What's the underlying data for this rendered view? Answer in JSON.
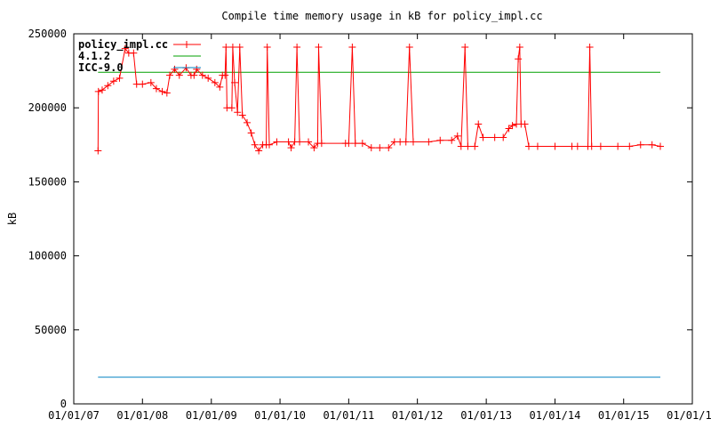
{
  "chart_data": {
    "type": "line",
    "title": "Compile time memory usage in kB for policy_impl.cc",
    "xlabel": "",
    "ylabel": "kB",
    "ylim": [
      0,
      250000
    ],
    "yticks": [
      0,
      50000,
      100000,
      150000,
      200000,
      250000
    ],
    "xlim": [
      "2007-01-01",
      "2016-01-01"
    ],
    "xticks": [
      {
        "date": "2007-01-01",
        "label": "01/01/07"
      },
      {
        "date": "2008-01-01",
        "label": "01/01/08"
      },
      {
        "date": "2009-01-01",
        "label": "01/01/09"
      },
      {
        "date": "2010-01-01",
        "label": "01/01/10"
      },
      {
        "date": "2011-01-01",
        "label": "01/01/11"
      },
      {
        "date": "2012-01-01",
        "label": "01/01/12"
      },
      {
        "date": "2013-01-01",
        "label": "01/01/13"
      },
      {
        "date": "2014-01-01",
        "label": "01/01/14"
      },
      {
        "date": "2015-01-01",
        "label": "01/01/15"
      },
      {
        "date": "2016-01-01",
        "label": "01/01/16"
      }
    ],
    "grid": false,
    "legend_position": "top-left",
    "series": [
      {
        "name": "policy_impl.cc",
        "color": "#ff0000",
        "marker": "plus",
        "points": [
          [
            "2007-05-10",
            171000
          ],
          [
            "2007-05-12",
            211000
          ],
          [
            "2007-06-01",
            212000
          ],
          [
            "2007-07-01",
            215000
          ],
          [
            "2007-08-01",
            218000
          ],
          [
            "2007-09-01",
            220000
          ],
          [
            "2007-10-01",
            240000
          ],
          [
            "2007-10-20",
            237000
          ],
          [
            "2007-11-15",
            237000
          ],
          [
            "2007-12-01",
            216000
          ],
          [
            "2008-01-01",
            216000
          ],
          [
            "2008-02-15",
            217000
          ],
          [
            "2008-03-15",
            213000
          ],
          [
            "2008-04-15",
            211000
          ],
          [
            "2008-05-10",
            210000
          ],
          [
            "2008-05-25",
            222000
          ],
          [
            "2008-06-20",
            226000
          ],
          [
            "2008-07-15",
            222000
          ],
          [
            "2008-08-20",
            227000
          ],
          [
            "2008-09-15",
            222000
          ],
          [
            "2008-10-01",
            222000
          ],
          [
            "2008-10-15",
            226000
          ],
          [
            "2008-11-15",
            222000
          ],
          [
            "2008-12-15",
            220000
          ],
          [
            "2009-01-20",
            217000
          ],
          [
            "2009-02-15",
            214000
          ],
          [
            "2009-03-01",
            222000
          ],
          [
            "2009-03-15",
            222000
          ],
          [
            "2009-03-20",
            241000
          ],
          [
            "2009-03-25",
            200000
          ],
          [
            "2009-04-20",
            200000
          ],
          [
            "2009-04-25",
            241000
          ],
          [
            "2009-05-05",
            217000
          ],
          [
            "2009-05-20",
            197000
          ],
          [
            "2009-06-01",
            241000
          ],
          [
            "2009-06-15",
            195000
          ],
          [
            "2009-07-10",
            190000
          ],
          [
            "2009-08-01",
            183000
          ],
          [
            "2009-08-20",
            175000
          ],
          [
            "2009-09-10",
            171000
          ],
          [
            "2009-10-01",
            175000
          ],
          [
            "2009-10-20",
            175000
          ],
          [
            "2009-10-25",
            241000
          ],
          [
            "2009-11-05",
            175000
          ],
          [
            "2009-12-15",
            177000
          ],
          [
            "2010-02-15",
            177000
          ],
          [
            "2010-03-01",
            173000
          ],
          [
            "2010-03-20",
            177000
          ],
          [
            "2010-04-01",
            241000
          ],
          [
            "2010-04-15",
            177000
          ],
          [
            "2010-06-01",
            177000
          ],
          [
            "2010-07-01",
            173000
          ],
          [
            "2010-07-20",
            176000
          ],
          [
            "2010-07-25",
            241000
          ],
          [
            "2010-08-10",
            176000
          ],
          [
            "2010-12-15",
            176000
          ],
          [
            "2011-01-01",
            176000
          ],
          [
            "2011-01-20",
            241000
          ],
          [
            "2011-02-05",
            176000
          ],
          [
            "2011-03-15",
            176000
          ],
          [
            "2011-05-01",
            173000
          ],
          [
            "2011-06-15",
            173000
          ],
          [
            "2011-08-01",
            173000
          ],
          [
            "2011-09-01",
            177000
          ],
          [
            "2011-10-01",
            177000
          ],
          [
            "2011-11-01",
            177000
          ],
          [
            "2011-11-20",
            241000
          ],
          [
            "2011-12-10",
            177000
          ],
          [
            "2012-03-01",
            177000
          ],
          [
            "2012-05-01",
            178000
          ],
          [
            "2012-07-01",
            178000
          ],
          [
            "2012-08-01",
            181000
          ],
          [
            "2012-08-20",
            174000
          ],
          [
            "2012-09-10",
            241000
          ],
          [
            "2012-09-25",
            174000
          ],
          [
            "2012-11-01",
            174000
          ],
          [
            "2012-11-20",
            189000
          ],
          [
            "2012-12-15",
            180000
          ],
          [
            "2013-02-15",
            180000
          ],
          [
            "2013-04-01",
            180000
          ],
          [
            "2013-05-01",
            186000
          ],
          [
            "2013-05-20",
            188000
          ],
          [
            "2013-06-10",
            189000
          ],
          [
            "2013-06-20",
            233000
          ],
          [
            "2013-06-28",
            241000
          ],
          [
            "2013-07-05",
            189000
          ],
          [
            "2013-07-25",
            189000
          ],
          [
            "2013-08-15",
            174000
          ],
          [
            "2013-10-01",
            174000
          ],
          [
            "2014-01-01",
            174000
          ],
          [
            "2014-04-01",
            174000
          ],
          [
            "2014-05-01",
            174000
          ],
          [
            "2014-06-25",
            174000
          ],
          [
            "2014-07-05",
            241000
          ],
          [
            "2014-07-15",
            174000
          ],
          [
            "2014-09-01",
            174000
          ],
          [
            "2014-12-01",
            174000
          ],
          [
            "2015-02-01",
            174000
          ],
          [
            "2015-04-01",
            175000
          ],
          [
            "2015-06-01",
            175000
          ],
          [
            "2015-07-15",
            174000
          ]
        ]
      },
      {
        "name": "4.1.2",
        "color": "#00a000",
        "marker": "none",
        "points": [
          [
            "2007-05-10",
            224000
          ],
          [
            "2015-07-15",
            224000
          ]
        ]
      },
      {
        "name": "ICC-9.0",
        "color": "#0080c0",
        "marker": "none",
        "points": [
          [
            "2007-05-10",
            18000
          ],
          [
            "2015-07-15",
            18000
          ]
        ]
      }
    ]
  }
}
